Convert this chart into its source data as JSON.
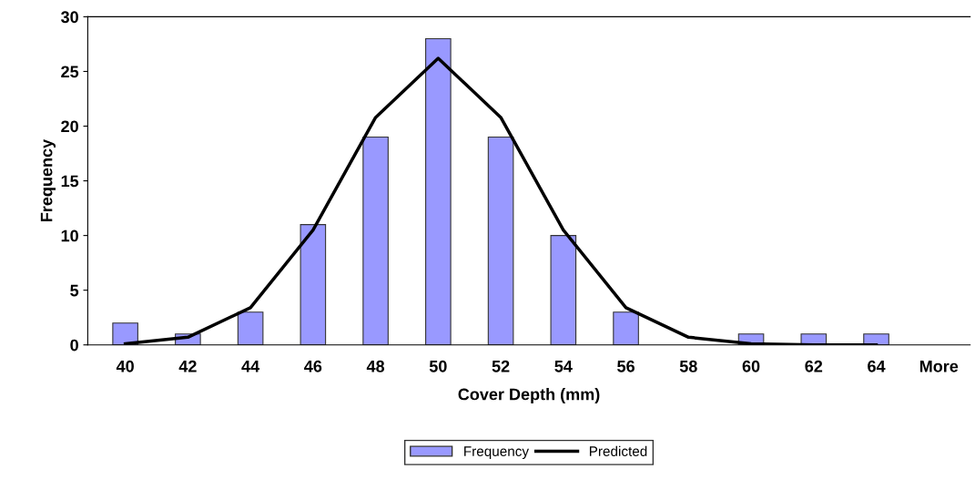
{
  "chart_data": {
    "type": "bar",
    "xlabel": "Cover Depth (mm)",
    "ylabel": "Frequency",
    "categories": [
      "40",
      "42",
      "44",
      "46",
      "48",
      "50",
      "52",
      "54",
      "56",
      "58",
      "60",
      "62",
      "64",
      "More"
    ],
    "ylim": [
      0,
      30
    ],
    "yticks": [
      0,
      5,
      10,
      15,
      20,
      25,
      30
    ],
    "grid": false,
    "legend": "bottom",
    "series": [
      {
        "name": "Frequency",
        "color": "#9999ff",
        "values": [
          2,
          1,
          3,
          11,
          19,
          28,
          19,
          10,
          3,
          0,
          1,
          1,
          1,
          0
        ]
      },
      {
        "name": "Predicted",
        "type": "line",
        "color": "#000000",
        "values": [
          0.1,
          0.7,
          3.4,
          10.5,
          20.8,
          26.2,
          20.8,
          10.5,
          3.4,
          0.7,
          0.1,
          0,
          0,
          null
        ]
      }
    ]
  }
}
